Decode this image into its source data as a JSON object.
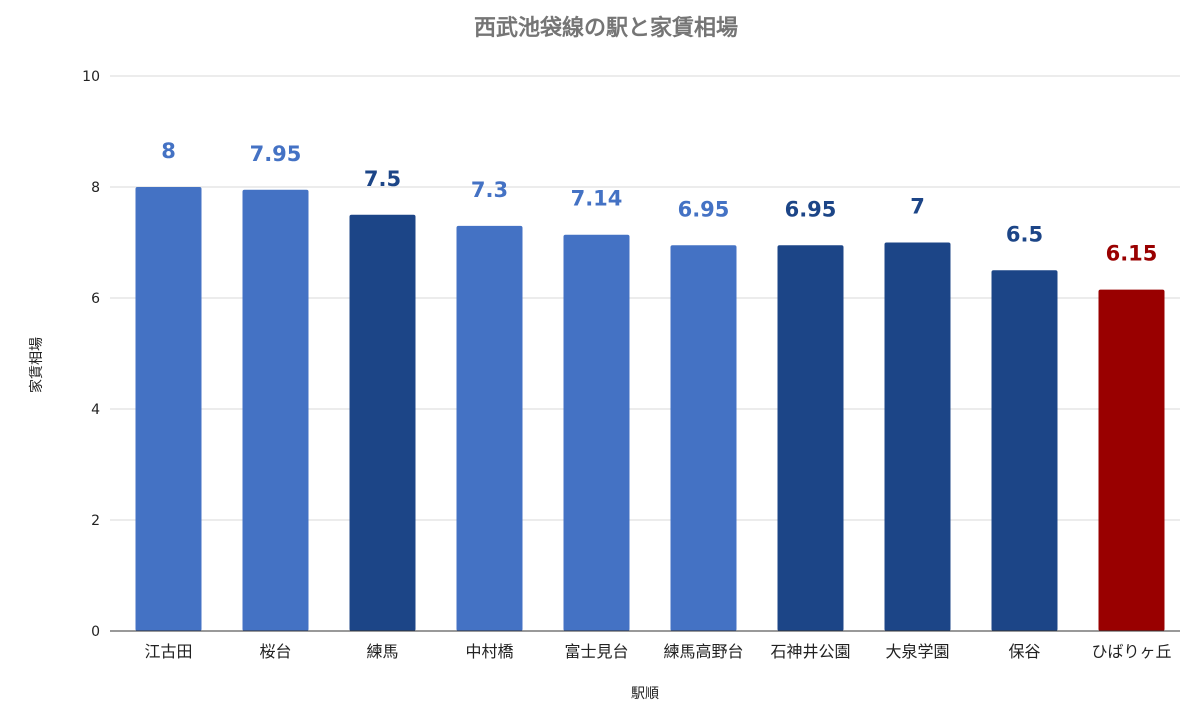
{
  "chart_data": {
    "type": "bar",
    "title": "西武池袋線の駅と家賃相場",
    "xlabel": "駅順",
    "ylabel": "家賃相場",
    "ylim": [
      0,
      10
    ],
    "yticks": [
      0,
      2,
      4,
      6,
      8,
      10
    ],
    "grid": true,
    "legend": "none",
    "categories": [
      "江古田",
      "桜台",
      "練馬",
      "中村橋",
      "富士見台",
      "練馬高野台",
      "石神井公園",
      "大泉学園",
      "保谷",
      "ひばりヶ丘"
    ],
    "values": [
      8,
      7.95,
      7.5,
      7.3,
      7.14,
      6.95,
      6.95,
      7,
      6.5,
      6.15
    ],
    "data_labels": [
      "8",
      "7.95",
      "7.5",
      "7.3",
      "7.14",
      "6.95",
      "6.95",
      "7",
      "6.5",
      "6.15"
    ],
    "bar_colors": [
      "#4472c4",
      "#4472c4",
      "#1c4587",
      "#4472c4",
      "#4472c4",
      "#4472c4",
      "#1c4587",
      "#1c4587",
      "#1c4587",
      "#990000"
    ]
  }
}
